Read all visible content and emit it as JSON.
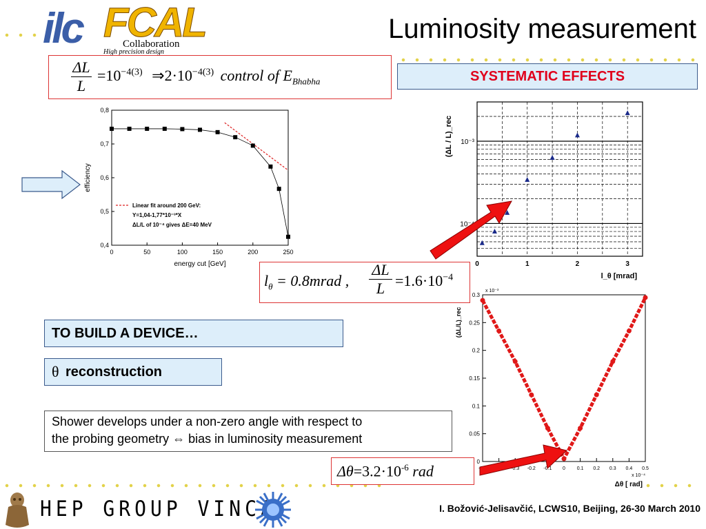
{
  "slide": {
    "title": "Luminosity measurement",
    "logo_ilc": "ilc",
    "logo_fcal": "FCAL",
    "logo_collab": "Collaboration",
    "logo_subtitle": "High precision design",
    "systematic_label": "SYSTEMATIC EFFECTS",
    "build_label": "TO BUILD A DEVICE…",
    "theta_symbol": "θ",
    "theta_label": "reconstruction",
    "shower_text_1": "Shower develops under a non-zero angle with respect to",
    "shower_text_2": "the probing geometry ⇔ bias in luminosity measurement",
    "footer_credit": "I. Božović-Jelisavčić, LCWS10, Beijing, 26-30 March 2010",
    "footer_group": "HEP GROUP VINCA"
  },
  "formulas": {
    "top": {
      "frac_num": "ΔL",
      "frac_den": "L",
      "eq": "=10",
      "exp1": "−4(3)",
      "arrow": "⇒2·10",
      "exp2": "−4(3)",
      "tail": "control  of  E",
      "sub": "Bhabha"
    },
    "middle": {
      "l": "l",
      "theta_sub": "θ",
      "val": "= 0.8mrad ,",
      "frac_num": "ΔL",
      "frac_den": "L",
      "eq2": "=1.6·10",
      "exp": "−4"
    },
    "bottom": {
      "delta": "Δθ",
      "eq": "=3.2·10",
      "exp": "-6",
      "unit": "rad"
    }
  },
  "chart_data": [
    {
      "type": "line",
      "x": [
        0,
        25,
        50,
        75,
        100,
        125,
        150,
        175,
        200,
        225,
        237,
        250
      ],
      "y": [
        0.745,
        0.745,
        0.745,
        0.745,
        0.744,
        0.742,
        0.735,
        0.72,
        0.695,
        0.633,
        0.567,
        0.425
      ],
      "fit_line": {
        "x": [
          160,
          250
        ],
        "y": [
          0.763,
          0.622
        ]
      },
      "xlabel": "energy cut [GeV]",
      "ylabel": "efficiency",
      "xlim": [
        0,
        250
      ],
      "ylim": [
        0.4,
        0.8
      ],
      "xticks": [
        "0",
        "50",
        "100",
        "150",
        "200",
        "250"
      ],
      "yticks": [
        "0,4",
        "0,5",
        "0,6",
        "0,7",
        "0,8"
      ],
      "legend": [
        "Linear fit around 200 GeV:",
        "Y=1,04-1,77*10⁻³*X",
        "ΔL/L of 10⁻⁴ gives ΔE=40 MeV"
      ],
      "legend_position": "bottom-left"
    },
    {
      "type": "scatter",
      "x": [
        0.1,
        0.35,
        0.6,
        1.0,
        1.5,
        2.0,
        3.0
      ],
      "y": [
        5.8e-05,
        8e-05,
        0.000135,
        0.00034,
        0.00063,
        0.00118,
        0.0022
      ],
      "xlabel": "l_θ [mrad]",
      "ylabel": "(ΔL / L)_rec",
      "xlim": [
        0,
        3.3
      ],
      "log_y": true,
      "xticks": [
        "0",
        "1",
        "2",
        "3"
      ],
      "yticks": [
        "10⁻⁴",
        "10⁻³"
      ]
    },
    {
      "type": "scatter",
      "x": [
        -0.5,
        -0.4,
        -0.3,
        -0.2,
        -0.1,
        0.0,
        0.1,
        0.2,
        0.3,
        0.4,
        0.5
      ],
      "y": [
        0.29,
        0.235,
        0.18,
        0.12,
        0.06,
        0.005,
        0.06,
        0.12,
        0.18,
        0.235,
        0.295
      ],
      "xlabel": "Δθ  [ rad]",
      "ylabel": "(ΔL/L)_rec",
      "y_multiplier": "x 10⁻³",
      "x_multiplier": "x 10⁻⁴",
      "xlim": [
        -0.5,
        0.5
      ],
      "ylim": [
        0,
        0.3
      ],
      "xticks": [
        "-0.5",
        "-0.4",
        "-0.3",
        "-0.2",
        "-0.1",
        "0",
        "0.1",
        "0.2",
        "0.3",
        "0.4",
        "0.5"
      ],
      "yticks": [
        "0",
        "0.05",
        "0.1",
        "0.15",
        "0.2",
        "0.25",
        "0.3"
      ]
    }
  ],
  "colors": {
    "accent_red": "#e0001b",
    "box_blue": "#ddeefa",
    "dots": "#e2d24a",
    "logo_blue": "#3b5ea8",
    "logo_gold": "#f0b400"
  }
}
